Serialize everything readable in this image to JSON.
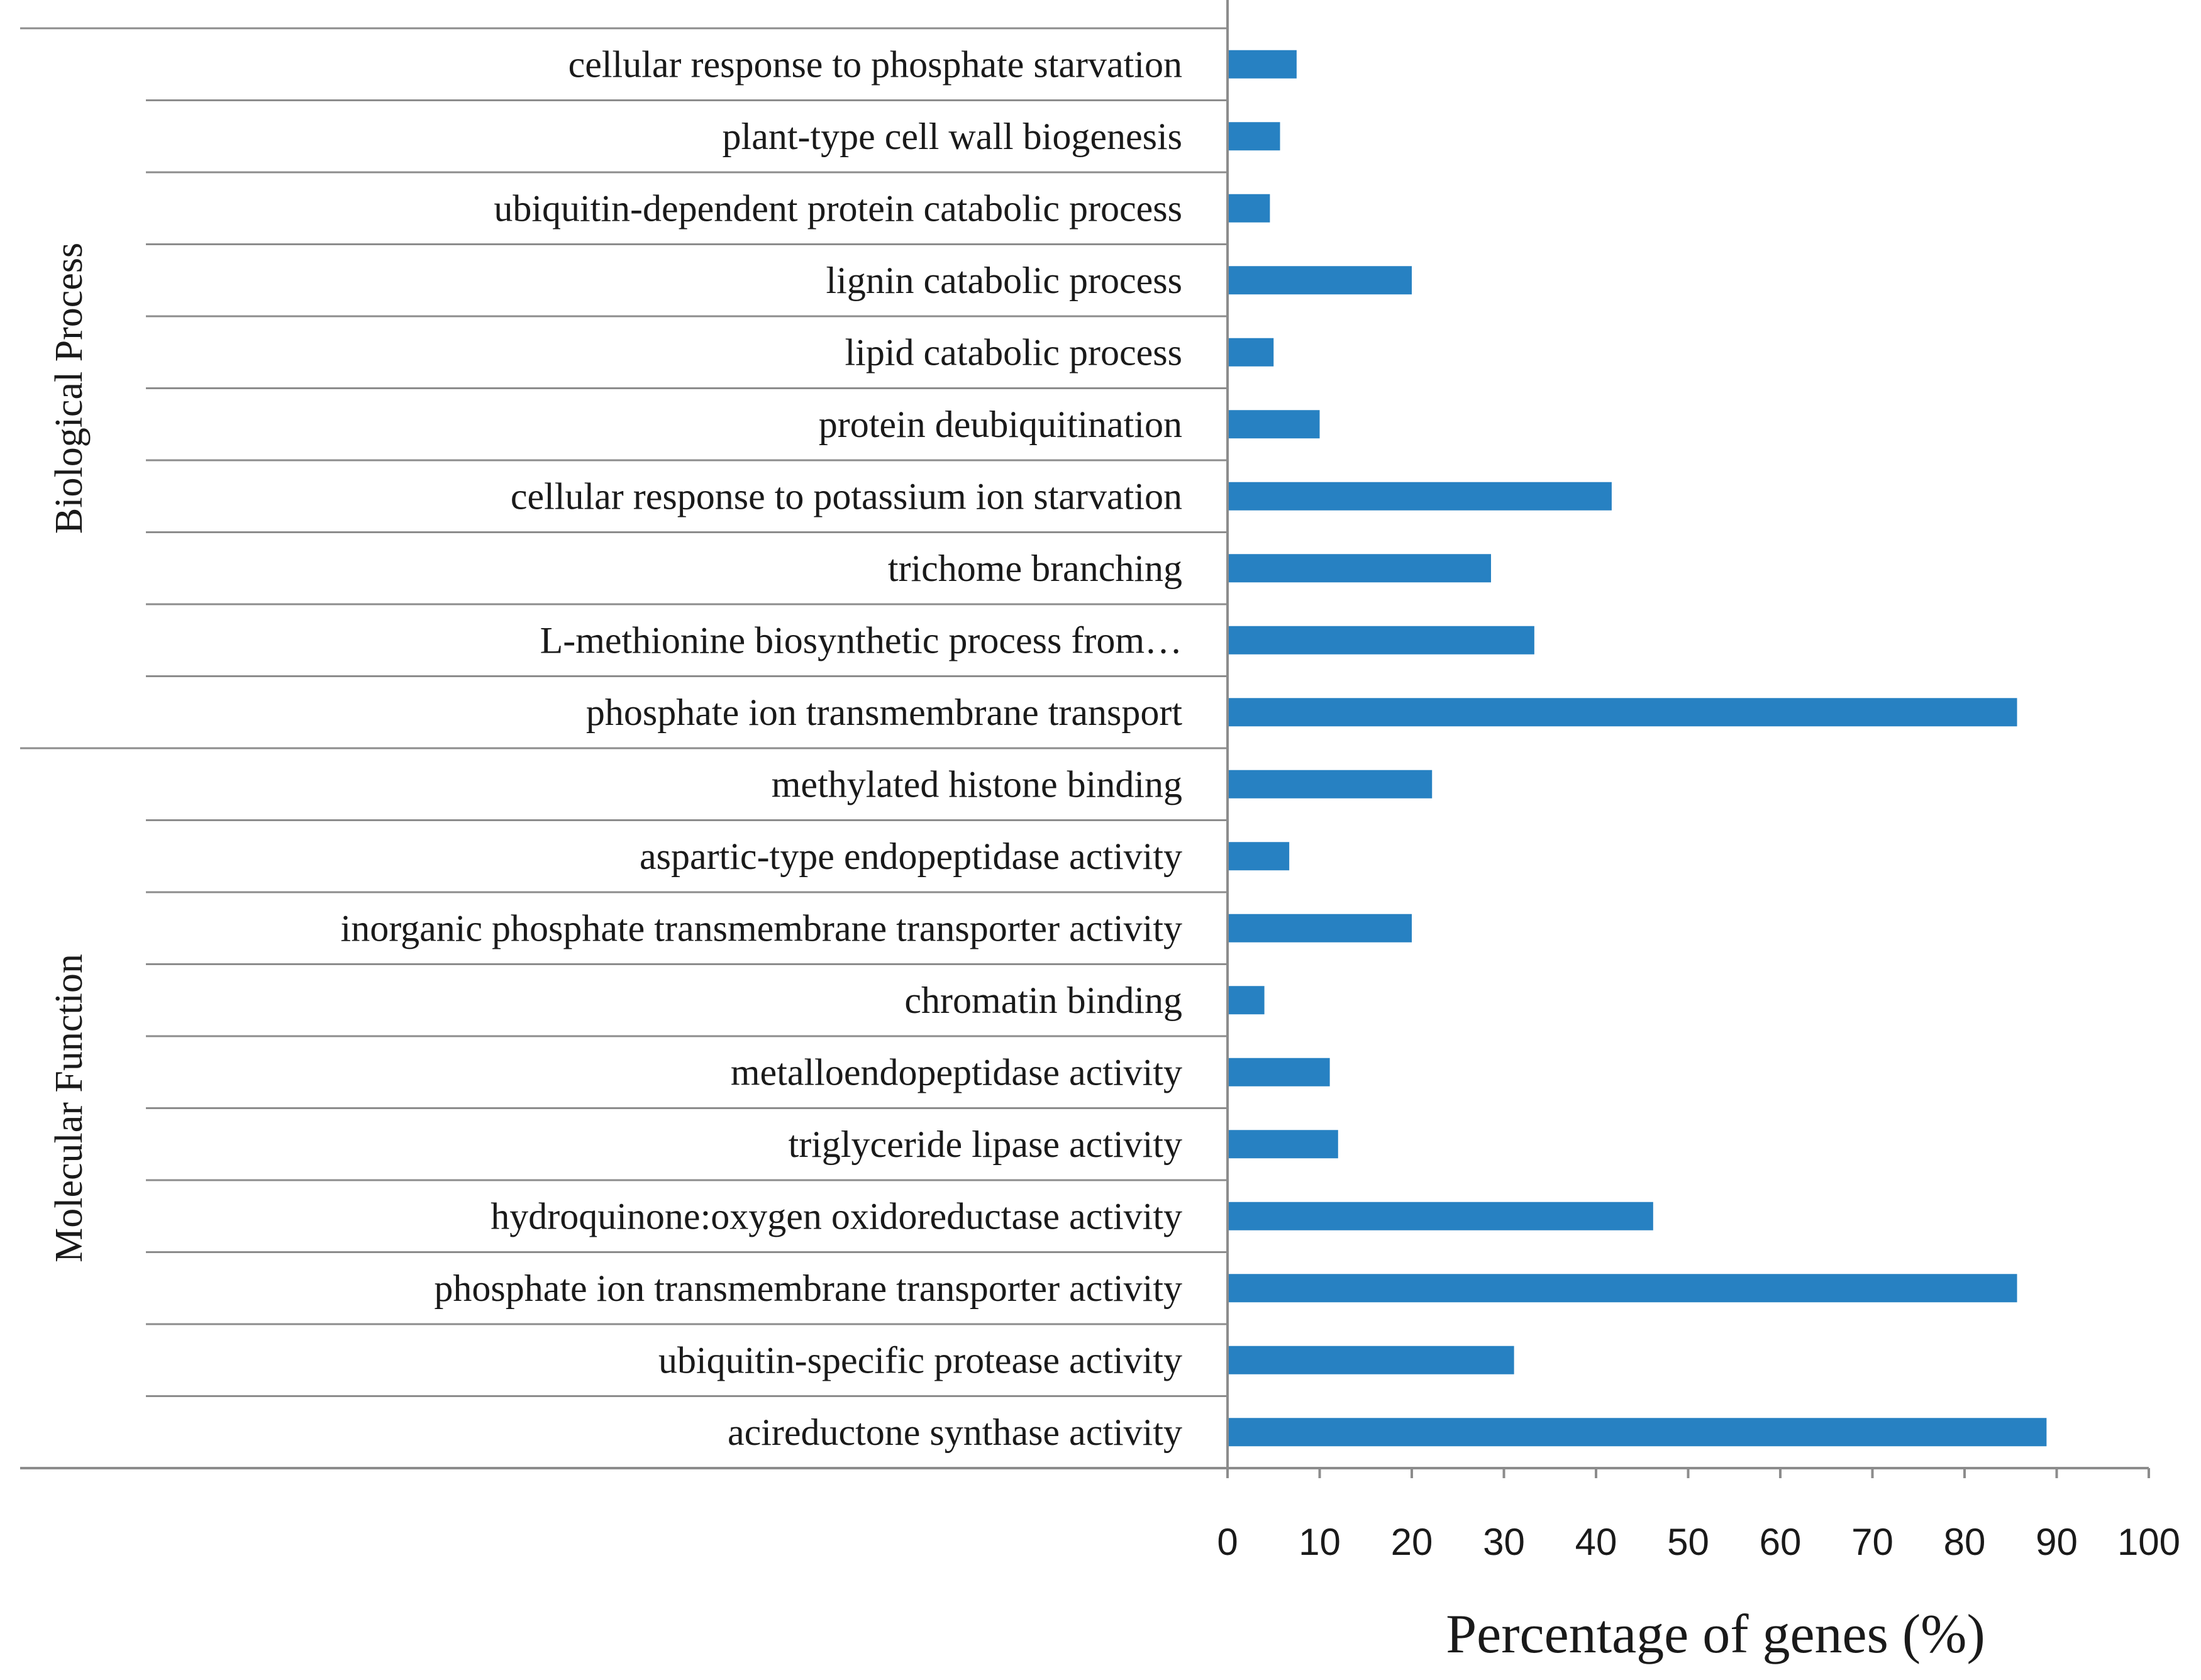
{
  "chart_data": {
    "type": "bar",
    "orientation": "horizontal",
    "title": "",
    "xlabel": "Percentage of genes (%)",
    "ylabel": "",
    "xlim": [
      0,
      100
    ],
    "xticks": [
      0,
      10,
      20,
      30,
      40,
      50,
      60,
      70,
      80,
      90,
      100
    ],
    "grid": false,
    "legend": "none",
    "bar_color": "#2781c2",
    "groups": [
      {
        "name": "Biological Process",
        "categories": [
          {
            "label": "cellular response to phosphate starvation",
            "value": 7.5
          },
          {
            "label": "plant-type cell wall biogenesis",
            "value": 5.7
          },
          {
            "label": "ubiquitin-dependent protein catabolic process",
            "value": 4.6
          },
          {
            "label": "lignin catabolic process",
            "value": 20
          },
          {
            "label": "lipid catabolic process",
            "value": 5
          },
          {
            "label": "protein deubiquitination",
            "value": 10
          },
          {
            "label": "cellular response to potassium ion starvation",
            "value": 41.7
          },
          {
            "label": "trichome branching",
            "value": 28.6
          },
          {
            "label": "L-methionine biosynthetic process from…",
            "value": 33.3
          },
          {
            "label": "phosphate ion transmembrane transport",
            "value": 85.7
          }
        ]
      },
      {
        "name": "Molecular Function",
        "categories": [
          {
            "label": "methylated histone binding",
            "value": 22.2
          },
          {
            "label": "aspartic-type endopeptidase activity",
            "value": 6.7
          },
          {
            "label": "inorganic phosphate transmembrane transporter activity",
            "value": 20
          },
          {
            "label": "chromatin binding",
            "value": 4
          },
          {
            "label": "metalloendopeptidase activity",
            "value": 11.1
          },
          {
            "label": "triglyceride lipase activity",
            "value": 12
          },
          {
            "label": "hydroquinone:oxygen oxidoreductase activity",
            "value": 46.2
          },
          {
            "label": "phosphate ion transmembrane transporter activity",
            "value": 85.7
          },
          {
            "label": "ubiquitin-specific protease activity",
            "value": 31.1
          },
          {
            "label": "acireductone synthase activity",
            "value": 88.9
          }
        ]
      }
    ]
  }
}
